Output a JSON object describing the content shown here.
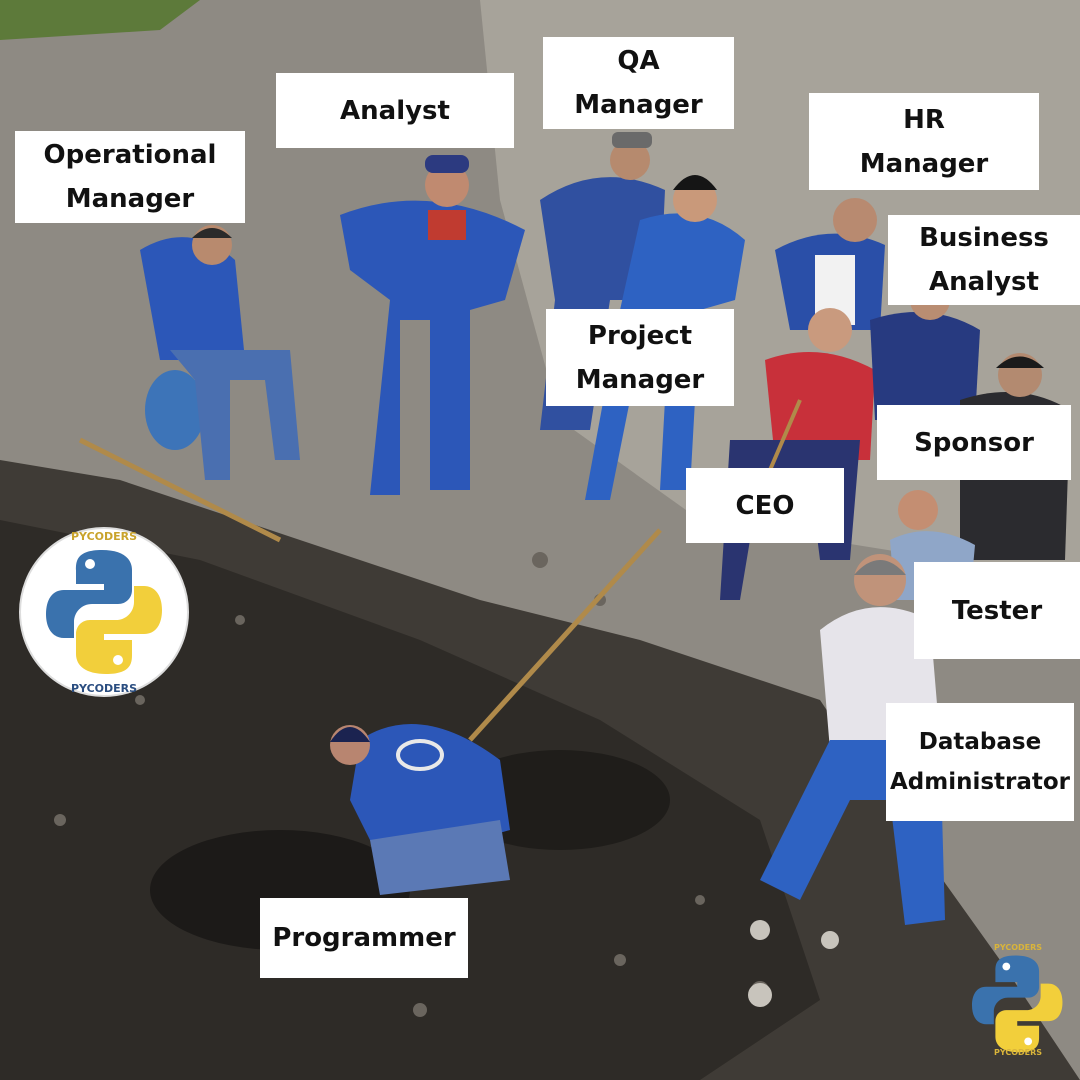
{
  "meme": {
    "labels": {
      "operational_manager": "Operational\nManager",
      "analyst": "Analyst",
      "qa_manager": "QA\nManager",
      "hr_manager": "HR\nManager",
      "business_analyst": "Business\nAnalyst",
      "project_manager": "Project\nManager",
      "sponsor": "Sponsor",
      "ceo": "CEO",
      "tester": "Tester",
      "database_administrator": "Database\nAdministrator",
      "programmer": "Programmer"
    },
    "watermark": {
      "brand_top": "PYCODERS",
      "brand_bottom": "PYCODERS"
    }
  },
  "colors": {
    "workwear_blue": "#2c57b8",
    "python_blue": "#3a72ad",
    "python_yellow": "#f2cf3b",
    "dirt": "#3e3a35",
    "gravel": "#9c968d"
  },
  "icons": [
    "python-logo-icon"
  ]
}
